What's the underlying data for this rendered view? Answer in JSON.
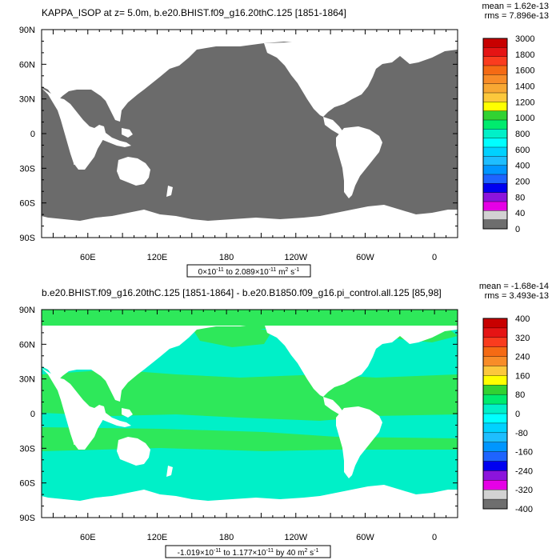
{
  "chart_data": [
    {
      "type": "heatmap",
      "title": "KAPPA_ISOP at z=   5.0m, b.e20.BHIST.f09_g16.20thC.125 [1851-1864]",
      "stats": {
        "mean": "mean = 1.62e-13",
        "rms": "rms = 7.896e-13"
      },
      "lat_ticks": [
        "90N",
        "60N",
        "30N",
        "0",
        "30S",
        "60S",
        "90S"
      ],
      "lon_ticks": [
        "60E",
        "120E",
        "180",
        "120W",
        "60W",
        "0"
      ],
      "range_label": {
        "pre": "0×10",
        "e1": "-11",
        "mid": " to 2.089×10",
        "e2": "-11",
        "post": " m",
        "e3": "2",
        "post2": " s",
        "e4": "-1"
      },
      "colorbar": {
        "labels": [
          "3000",
          "1800",
          "1600",
          "1400",
          "1200",
          "1000",
          "800",
          "600",
          "400",
          "200",
          "80",
          "40",
          "0"
        ],
        "colors": [
          "#c80000",
          "#e51414",
          "#fa3c1e",
          "#f56a14",
          "#f88c28",
          "#f8a833",
          "#fcc83c",
          "#ffff00",
          "#32d232",
          "#00eb6e",
          "#00f0c8",
          "#00ffff",
          "#00d2ff",
          "#1ebeff",
          "#0096ff",
          "#1e64ff",
          "#0000f0",
          "#8c14dc",
          "#e600e6",
          "#d2d2d2",
          "#6e6e6e"
        ]
      },
      "ocean_color": "#6b6b6b",
      "land_color": "#ffffff"
    },
    {
      "type": "heatmap",
      "title": "b.e20.BHIST.f09_g16.20thC.125 [1851-1864] - b.e20.B1850.f09_g16.pi_control.all.125 [85,98]",
      "stats": {
        "mean": "mean = -1.68e-14",
        "rms": "rms = 3.493e-13"
      },
      "lat_ticks": [
        "90N",
        "60N",
        "30N",
        "0",
        "30S",
        "60S",
        "90S"
      ],
      "lon_ticks": [
        "60E",
        "120E",
        "180",
        "120W",
        "60W",
        "0"
      ],
      "range_label": {
        "pre": "-1.019×10",
        "e1": "-11",
        "mid": " to 1.177×10",
        "e2": "-11",
        "post": " by 40 m",
        "e3": "2",
        "post2": " s",
        "e4": "-1"
      },
      "colorbar": {
        "labels": [
          "400",
          "320",
          "240",
          "160",
          "80",
          "0",
          "-80",
          "-160",
          "-240",
          "-320",
          "-400"
        ],
        "colors": [
          "#c80000",
          "#e51414",
          "#fa3c1e",
          "#f56a14",
          "#f88c28",
          "#fcc83c",
          "#ffff00",
          "#32d232",
          "#00eb6e",
          "#00f0c8",
          "#00ffff",
          "#00d2ff",
          "#1ebeff",
          "#0096ff",
          "#1e64ff",
          "#0000f0",
          "#8c14dc",
          "#e600e6",
          "#d2d2d2",
          "#6e6e6e"
        ]
      },
      "ocean_color": "#00f0c8",
      "ocean_alt_color": "#2ee85a",
      "land_color": "#ffffff"
    }
  ]
}
